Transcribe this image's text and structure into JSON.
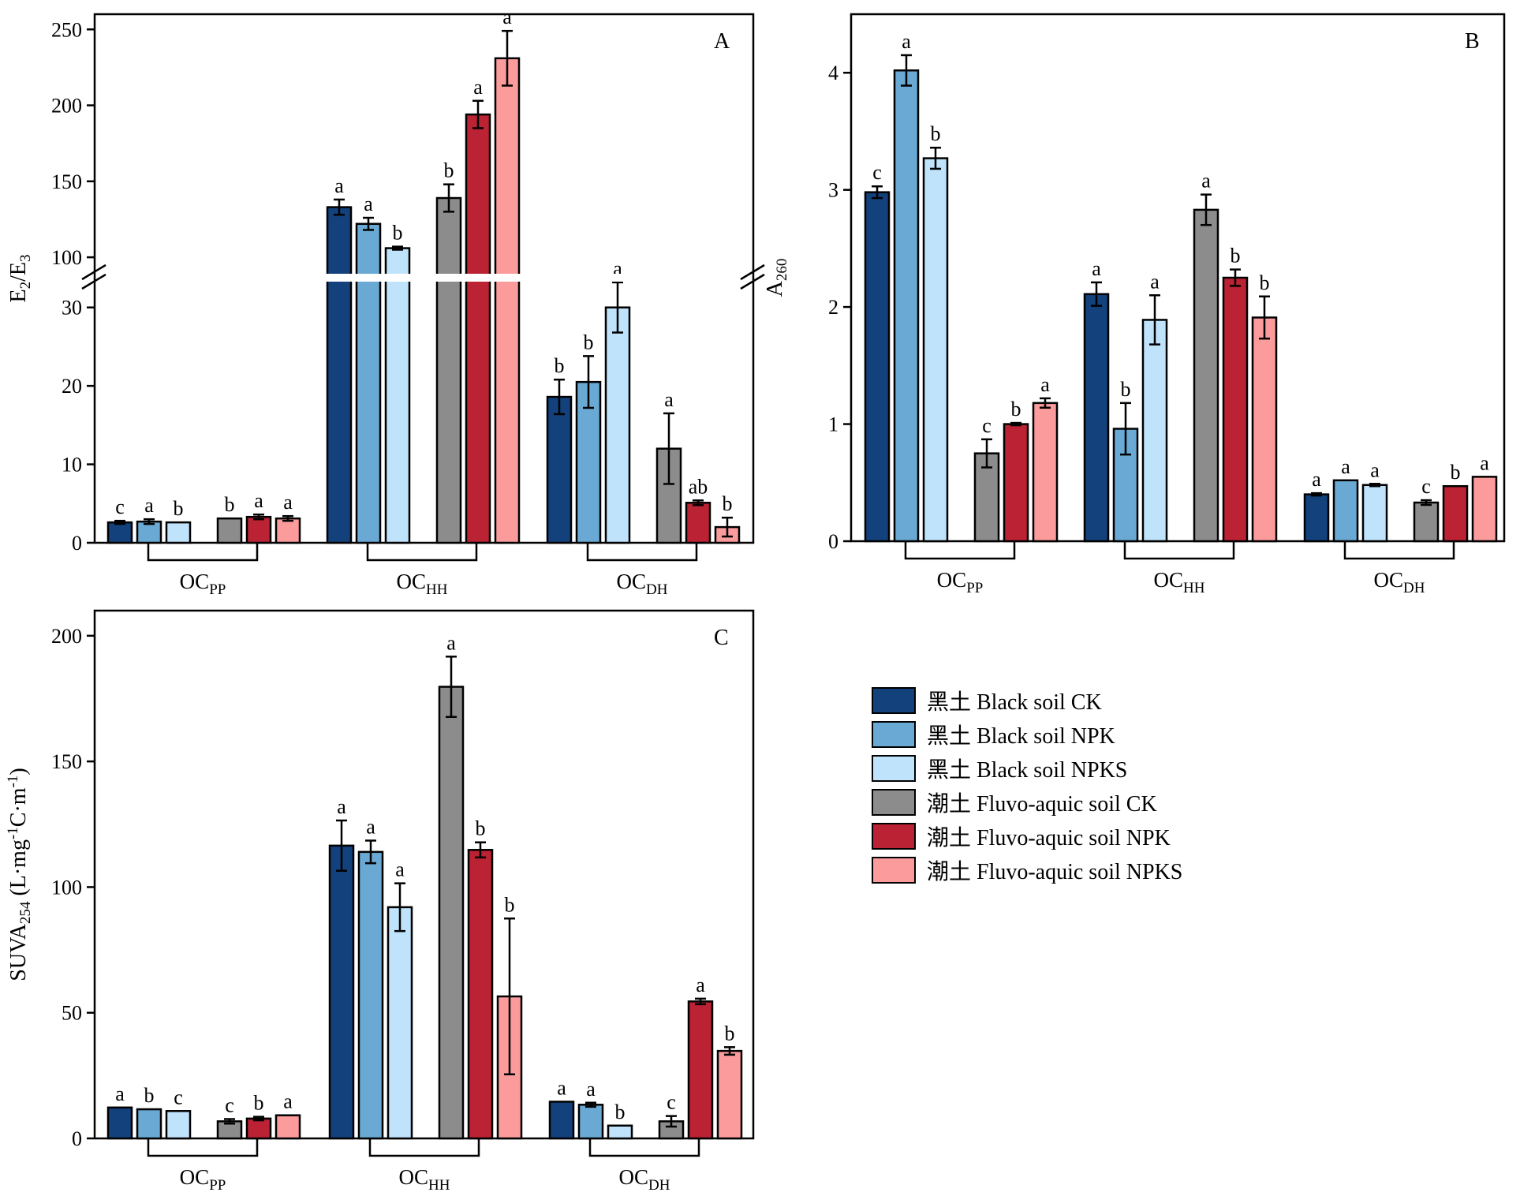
{
  "series_styles": [
    {
      "name": "黑土 Black soil CK",
      "color": "#13417c"
    },
    {
      "name": "黑土 Black soil NPK",
      "color": "#69a9d3"
    },
    {
      "name": "黑土 Black soil NPKS",
      "color": "#bfe3fb"
    },
    {
      "name": "潮土 Fluvo-aquic soil CK",
      "color": "#8c8c8c"
    },
    {
      "name": "潮土 Fluvo-aquic soil NPK",
      "color": "#bb2233"
    },
    {
      "name": "潮土 Fluvo-aquic soil NPKS",
      "color": "#fb9b9b"
    }
  ],
  "chart_data": [
    {
      "panel": "A",
      "type": "bar",
      "ylabel": {
        "main": "E",
        "sub1": "2",
        "mid": "/E",
        "sub2": "3"
      },
      "y_axis": "broken",
      "ylim_lower": [
        0,
        35
      ],
      "ylim_upper": [
        85,
        260
      ],
      "yticks_lower": [
        0,
        10,
        20,
        30
      ],
      "yticks_upper": [
        100,
        150,
        200,
        250
      ],
      "groups": [
        {
          "label": "OC",
          "sub": "PP"
        },
        {
          "label": "OC",
          "sub": "HH"
        },
        {
          "label": "OC",
          "sub": "DH"
        }
      ],
      "series": [
        {
          "name": "黑土 Black soil CK",
          "values": [
            2.6,
            133,
            18.6
          ],
          "errors": [
            0.2,
            5,
            2.2
          ],
          "letters": [
            "c",
            "a",
            "b"
          ]
        },
        {
          "name": "黑土 Black soil NPK",
          "values": [
            2.7,
            122,
            20.5
          ],
          "errors": [
            0.3,
            4,
            3.3
          ],
          "letters": [
            "a",
            "a",
            "b"
          ]
        },
        {
          "name": "黑土 Black soil NPKS",
          "values": [
            2.6,
            106,
            30.0
          ],
          "errors": [
            0,
            1,
            3.2
          ],
          "letters": [
            "b",
            "b",
            "a"
          ]
        },
        {
          "name": "潮土 Fluvo-aquic soil CK",
          "values": [
            3.1,
            139,
            12.0
          ],
          "errors": [
            0,
            9,
            4.5
          ],
          "letters": [
            "b",
            "b",
            "a"
          ]
        },
        {
          "name": "潮土 Fluvo-aquic soil NPK",
          "values": [
            3.3,
            194,
            5.1
          ],
          "errors": [
            0.3,
            9,
            0.3
          ],
          "letters": [
            "a",
            "a",
            "ab"
          ]
        },
        {
          "name": "潮土 Fluvo-aquic soil NPKS",
          "values": [
            3.1,
            231,
            2.0
          ],
          "errors": [
            0.3,
            18,
            1.2
          ],
          "letters": [
            "a",
            "a",
            "b"
          ]
        }
      ]
    },
    {
      "panel": "B",
      "type": "bar",
      "ylabel": {
        "main": "A",
        "sub1": "260"
      },
      "ylim": [
        0,
        4.5
      ],
      "yticks": [
        0,
        1,
        2,
        3,
        4
      ],
      "groups": [
        {
          "label": "OC",
          "sub": "PP"
        },
        {
          "label": "OC",
          "sub": "HH"
        },
        {
          "label": "OC",
          "sub": "DH"
        }
      ],
      "series": [
        {
          "name": "黑土 Black soil CK",
          "values": [
            2.98,
            2.11,
            0.4
          ],
          "errors": [
            0.05,
            0.1,
            0.01
          ],
          "letters": [
            "c",
            "a",
            "a"
          ]
        },
        {
          "name": "黑土 Black soil NPK",
          "values": [
            4.02,
            0.96,
            0.52
          ],
          "errors": [
            0.13,
            0.22,
            0
          ],
          "letters": [
            "a",
            "b",
            "a"
          ]
        },
        {
          "name": "黑土 Black soil NPKS",
          "values": [
            3.27,
            1.89,
            0.48
          ],
          "errors": [
            0.09,
            0.21,
            0.01
          ],
          "letters": [
            "b",
            "a",
            "a"
          ]
        },
        {
          "name": "潮土 Fluvo-aquic soil CK",
          "values": [
            0.75,
            2.83,
            0.33
          ],
          "errors": [
            0.12,
            0.13,
            0.02
          ],
          "letters": [
            "c",
            "a",
            "c"
          ]
        },
        {
          "name": "潮土 Fluvo-aquic soil NPK",
          "values": [
            1.0,
            2.25,
            0.47
          ],
          "errors": [
            0.01,
            0.07,
            0
          ],
          "letters": [
            "b",
            "b",
            "b"
          ]
        },
        {
          "name": "潮土 Fluvo-aquic soil NPKS",
          "values": [
            1.18,
            1.91,
            0.55
          ],
          "errors": [
            0.04,
            0.18,
            0
          ],
          "letters": [
            "a",
            "b",
            "a"
          ]
        }
      ]
    },
    {
      "panel": "C",
      "type": "bar",
      "ylabel": {
        "main": "SUVA",
        "sub1": "254",
        "unit_pre": " (L·mg",
        "sup1": "-1",
        "unit_mid": "C·m",
        "sup2": "-1",
        "unit_post": ")"
      },
      "ylim": [
        0,
        210
      ],
      "yticks": [
        0,
        50,
        100,
        150,
        200
      ],
      "groups": [
        {
          "label": "OC",
          "sub": "PP"
        },
        {
          "label": "OC",
          "sub": "HH"
        },
        {
          "label": "OC",
          "sub": "DH"
        }
      ],
      "series": [
        {
          "name": "黑土 Black soil CK",
          "values": [
            12.3,
            116.5,
            14.6
          ],
          "errors": [
            0,
            10,
            0
          ],
          "letters": [
            "a",
            "a",
            "a"
          ]
        },
        {
          "name": "黑土 Black soil NPK",
          "values": [
            11.6,
            114.0,
            13.4
          ],
          "errors": [
            0,
            4.5,
            0.8
          ],
          "letters": [
            "b",
            "a",
            "a"
          ]
        },
        {
          "name": "黑土 Black soil NPKS",
          "values": [
            10.9,
            92.0,
            5.1
          ],
          "errors": [
            0,
            9.5,
            0
          ],
          "letters": [
            "c",
            "a",
            "b"
          ]
        },
        {
          "name": "潮土 Fluvo-aquic soil CK",
          "values": [
            6.8,
            179.7,
            6.8
          ],
          "errors": [
            0.9,
            12,
            2.1
          ],
          "letters": [
            "c",
            "a",
            "c"
          ]
        },
        {
          "name": "潮土 Fluvo-aquic soil NPK",
          "values": [
            7.9,
            114.8,
            54.5
          ],
          "errors": [
            0.7,
            3,
            1.1
          ],
          "letters": [
            "b",
            "b",
            "a"
          ]
        },
        {
          "name": "潮土 Fluvo-aquic soil NPKS",
          "values": [
            9.2,
            56.5,
            34.8
          ],
          "errors": [
            0,
            31,
            1.5
          ],
          "letters": [
            "a",
            "b",
            "b"
          ]
        }
      ]
    }
  ]
}
